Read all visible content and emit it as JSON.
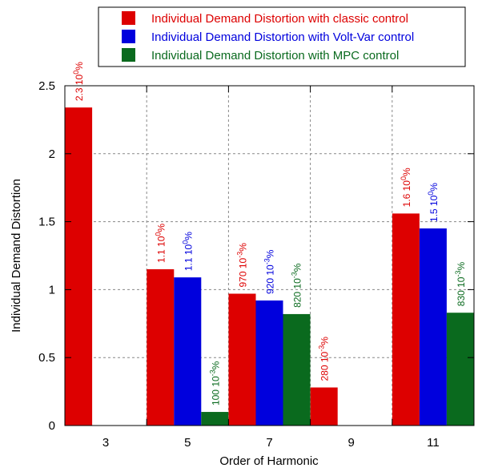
{
  "chart_data": {
    "type": "bar",
    "title": "",
    "xlabel": "Order of Harmonic",
    "ylabel": "Individual Demand Distortion",
    "categories": [
      "3",
      "5",
      "7",
      "9",
      "11"
    ],
    "ylim": [
      0,
      2.5
    ],
    "yticks": [
      "0",
      "0.5",
      "1",
      "1.5",
      "2",
      "2.5"
    ],
    "grid": true,
    "legend_position": "top",
    "series": [
      {
        "name": "Individual Demand Distortion with classic control",
        "color": "#dd0000",
        "values": [
          2.34,
          1.15,
          0.97,
          0.28,
          1.56
        ],
        "labels": [
          {
            "base": "2.3 10",
            "exp": "0",
            "unit": "%"
          },
          {
            "base": "1.1 10",
            "exp": "0",
            "unit": "%"
          },
          {
            "base": "970 10",
            "exp": "-3",
            "unit": "%"
          },
          {
            "base": "280 10",
            "exp": "-3",
            "unit": "%"
          },
          {
            "base": "1.6 10",
            "exp": "0",
            "unit": "%"
          }
        ]
      },
      {
        "name": "Individual Demand Distortion with Volt-Var control",
        "color": "#0000dd",
        "values": [
          null,
          1.09,
          0.92,
          null,
          1.45
        ],
        "labels": [
          null,
          {
            "base": "1.1 10",
            "exp": "0",
            "unit": "%"
          },
          {
            "base": "920 10",
            "exp": "-3",
            "unit": "%"
          },
          null,
          {
            "base": "1.5 10",
            "exp": "0",
            "unit": "%"
          }
        ]
      },
      {
        "name": "Individual Demand Distortion with MPC control",
        "color": "#0a6a1e",
        "values": [
          null,
          0.1,
          0.82,
          null,
          0.83
        ],
        "labels": [
          null,
          {
            "base": "100 10",
            "exp": "-3",
            "unit": "%"
          },
          {
            "base": "820 10",
            "exp": "-3",
            "unit": "%"
          },
          null,
          {
            "base": "830 10",
            "exp": "-3",
            "unit": "%"
          }
        ]
      }
    ]
  }
}
